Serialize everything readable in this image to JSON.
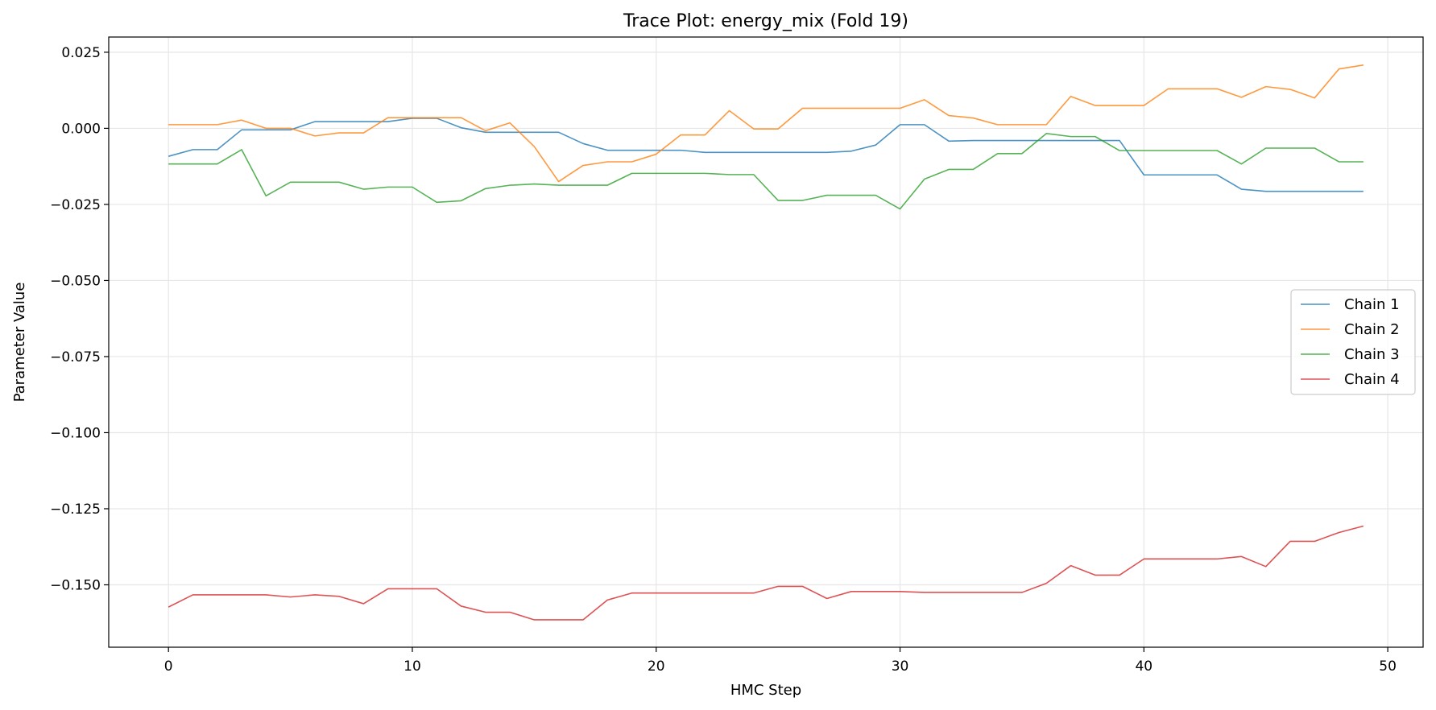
{
  "chart_data": {
    "type": "line",
    "title": "Trace Plot: energy_mix (Fold 19)",
    "xlabel": "HMC Step",
    "ylabel": "Parameter Value",
    "xlim": [
      -2.45,
      51.45
    ],
    "ylim": [
      -0.1705,
      0.03
    ],
    "xticks": [
      0,
      10,
      20,
      30,
      40,
      50
    ],
    "yticks": [
      0.025,
      0.0,
      -0.025,
      -0.05,
      -0.075,
      -0.1,
      -0.125,
      -0.15
    ],
    "ytick_labels": [
      "0.025",
      "0.000",
      "−0.025",
      "−0.050",
      "−0.075",
      "−0.100",
      "−0.125",
      "−0.150"
    ],
    "grid": true,
    "legend_position": "center-right",
    "x": [
      0,
      1,
      2,
      3,
      4,
      5,
      6,
      7,
      8,
      9,
      10,
      11,
      12,
      13,
      14,
      15,
      16,
      17,
      18,
      19,
      20,
      21,
      22,
      23,
      24,
      25,
      26,
      27,
      28,
      29,
      30,
      31,
      32,
      33,
      34,
      35,
      36,
      37,
      38,
      39,
      40,
      41,
      42,
      43,
      44,
      45,
      46,
      47,
      48,
      49
    ],
    "series": [
      {
        "name": "Chain 1",
        "color": "#1f77b4",
        "values": [
          -0.0092,
          -0.007,
          -0.007,
          -0.0005,
          -0.0005,
          -0.0005,
          0.0022,
          0.0022,
          0.0022,
          0.0022,
          0.0033,
          0.0033,
          0.0002,
          -0.0013,
          -0.0013,
          -0.0013,
          -0.0013,
          -0.005,
          -0.0072,
          -0.0072,
          -0.0072,
          -0.0072,
          -0.0079,
          -0.0079,
          -0.0079,
          -0.0079,
          -0.0079,
          -0.0079,
          -0.0075,
          -0.0055,
          0.0012,
          0.0012,
          -0.0042,
          -0.004,
          -0.004,
          -0.004,
          -0.004,
          -0.004,
          -0.004,
          -0.004,
          -0.0153,
          -0.0153,
          -0.0153,
          -0.0153,
          -0.02,
          -0.0207,
          -0.0207,
          -0.0207,
          -0.0207,
          -0.0207
        ]
      },
      {
        "name": "Chain 2",
        "color": "#ff7f0e",
        "values": [
          0.0012,
          0.0012,
          0.0012,
          0.0027,
          0.0,
          0.0,
          -0.0025,
          -0.0015,
          -0.0015,
          0.0035,
          0.0035,
          0.0035,
          0.0035,
          -0.0008,
          0.0018,
          -0.006,
          -0.0175,
          -0.0122,
          -0.011,
          -0.011,
          -0.0085,
          -0.0022,
          -0.0022,
          0.0058,
          -0.0002,
          -0.0002,
          0.0066,
          0.0066,
          0.0066,
          0.0066,
          0.0066,
          0.0094,
          0.0042,
          0.0034,
          0.0012,
          0.0012,
          0.0012,
          0.0105,
          0.0075,
          0.0075,
          0.0075,
          0.013,
          0.013,
          0.013,
          0.0102,
          0.0137,
          0.0128,
          0.01,
          0.0195,
          0.0208
        ]
      },
      {
        "name": "Chain 3",
        "color": "#2ca02c",
        "values": [
          -0.0117,
          -0.0117,
          -0.0117,
          -0.007,
          -0.0222,
          -0.0177,
          -0.0177,
          -0.0177,
          -0.02,
          -0.0193,
          -0.0193,
          -0.0243,
          -0.0238,
          -0.0198,
          -0.0187,
          -0.0183,
          -0.0187,
          -0.0187,
          -0.0187,
          -0.0148,
          -0.0148,
          -0.0148,
          -0.0148,
          -0.0152,
          -0.0152,
          -0.0237,
          -0.0237,
          -0.022,
          -0.022,
          -0.022,
          -0.0265,
          -0.0167,
          -0.0135,
          -0.0135,
          -0.0083,
          -0.0083,
          -0.0017,
          -0.0027,
          -0.0027,
          -0.0073,
          -0.0073,
          -0.0073,
          -0.0073,
          -0.0073,
          -0.0117,
          -0.0065,
          -0.0065,
          -0.0065,
          -0.011,
          -0.011
        ]
      },
      {
        "name": "Chain 4",
        "color": "#d62728",
        "values": [
          -0.1573,
          -0.1533,
          -0.1533,
          -0.1533,
          -0.1533,
          -0.154,
          -0.1533,
          -0.1538,
          -0.1562,
          -0.1513,
          -0.1513,
          -0.1513,
          -0.157,
          -0.159,
          -0.159,
          -0.1615,
          -0.1615,
          -0.1615,
          -0.155,
          -0.1527,
          -0.1527,
          -0.1527,
          -0.1527,
          -0.1527,
          -0.1527,
          -0.1505,
          -0.1505,
          -0.1545,
          -0.1522,
          -0.1522,
          -0.1522,
          -0.1525,
          -0.1525,
          -0.1525,
          -0.1525,
          -0.1525,
          -0.1495,
          -0.1437,
          -0.1468,
          -0.1468,
          -0.1415,
          -0.1415,
          -0.1415,
          -0.1415,
          -0.1407,
          -0.144,
          -0.1357,
          -0.1357,
          -0.1328,
          -0.1307
        ]
      }
    ]
  }
}
